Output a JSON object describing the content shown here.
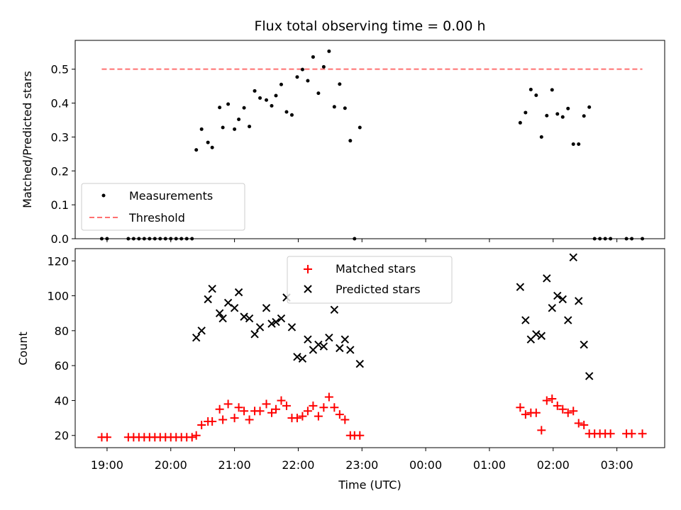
{
  "chart_data": [
    {
      "type": "scatter",
      "title": "Flux total observing time = 0.00 h",
      "xlabel": "",
      "ylabel": "Matched/Predicted stars",
      "ylim": [
        0,
        0.585
      ],
      "yticks": [
        0.0,
        0.1,
        0.2,
        0.3,
        0.4,
        0.5
      ],
      "legend_placement": "lower-left",
      "series": [
        {
          "name": "Measurements",
          "marker": "dot",
          "color": "#000000",
          "points": [
            [
              "18:55",
              0
            ],
            [
              "19:00",
              0
            ],
            [
              "19:20",
              0
            ],
            [
              "19:25",
              0
            ],
            [
              "19:30",
              0
            ],
            [
              "19:35",
              0
            ],
            [
              "19:40",
              0
            ],
            [
              "19:45",
              0
            ],
            [
              "19:50",
              0
            ],
            [
              "19:55",
              0
            ],
            [
              "20:00",
              0
            ],
            [
              "20:05",
              0
            ],
            [
              "20:10",
              0
            ],
            [
              "20:15",
              0
            ],
            [
              "20:20",
              0
            ],
            [
              "20:24",
              0.262
            ],
            [
              "20:29",
              0.323
            ],
            [
              "20:35",
              0.284
            ],
            [
              "20:39",
              0.269
            ],
            [
              "20:46",
              0.387
            ],
            [
              "20:49",
              0.328
            ],
            [
              "20:54",
              0.397
            ],
            [
              "21:00",
              0.323
            ],
            [
              "21:04",
              0.352
            ],
            [
              "21:09",
              0.386
            ],
            [
              "21:14",
              0.331
            ],
            [
              "21:19",
              0.436
            ],
            [
              "21:24",
              0.415
            ],
            [
              "21:30",
              0.409
            ],
            [
              "21:35",
              0.392
            ],
            [
              "21:39",
              0.422
            ],
            [
              "21:44",
              0.455
            ],
            [
              "21:49",
              0.374
            ],
            [
              "21:54",
              0.365
            ],
            [
              "21:59",
              0.477
            ],
            [
              "22:04",
              0.499
            ],
            [
              "22:09",
              0.466
            ],
            [
              "22:14",
              0.536
            ],
            [
              "22:19",
              0.429
            ],
            [
              "22:24",
              0.507
            ],
            [
              "22:29",
              0.553
            ],
            [
              "22:34",
              0.389
            ],
            [
              "22:39",
              0.456
            ],
            [
              "22:44",
              0.385
            ],
            [
              "22:49",
              0.289
            ],
            [
              "22:53",
              0
            ],
            [
              "22:58",
              0.328
            ],
            [
              "01:29",
              0.342
            ],
            [
              "01:34",
              0.372
            ],
            [
              "01:39",
              0.44
            ],
            [
              "01:44",
              0.423
            ],
            [
              "01:49",
              0.3
            ],
            [
              "01:54",
              0.363
            ],
            [
              "01:59",
              0.439
            ],
            [
              "02:04",
              0.368
            ],
            [
              "02:09",
              0.359
            ],
            [
              "02:14",
              0.384
            ],
            [
              "02:19",
              0.279
            ],
            [
              "02:24",
              0.279
            ],
            [
              "02:29",
              0.362
            ],
            [
              "02:34",
              0.388
            ],
            [
              "02:39",
              0
            ],
            [
              "02:44",
              0
            ],
            [
              "02:49",
              0
            ],
            [
              "02:54",
              0
            ],
            [
              "03:09",
              0
            ],
            [
              "03:14",
              0
            ],
            [
              "03:24",
              0
            ]
          ]
        },
        {
          "name": "Threshold",
          "type": "line",
          "style": "dashed",
          "color": "#ff7070",
          "x": [
            "18:55",
            "03:24"
          ],
          "y": [
            0.5,
            0.5
          ]
        }
      ]
    },
    {
      "type": "scatter",
      "xlabel": "Time (UTC)",
      "ylabel": "Count",
      "ylim": [
        13,
        127
      ],
      "yticks": [
        20,
        40,
        60,
        80,
        100,
        120
      ],
      "xlim": [
        "18:30",
        "03:45"
      ],
      "xticks": [
        "19:00",
        "20:00",
        "21:00",
        "22:00",
        "23:00",
        "00:00",
        "01:00",
        "02:00",
        "03:00"
      ],
      "legend_placement": "top-center",
      "series": [
        {
          "name": "Matched stars",
          "marker": "plus",
          "color": "#ff0000",
          "points": [
            [
              "18:55",
              19
            ],
            [
              "19:00",
              19
            ],
            [
              "19:20",
              19
            ],
            [
              "19:25",
              19
            ],
            [
              "19:30",
              19
            ],
            [
              "19:35",
              19
            ],
            [
              "19:40",
              19
            ],
            [
              "19:45",
              19
            ],
            [
              "19:50",
              19
            ],
            [
              "19:55",
              19
            ],
            [
              "20:00",
              19
            ],
            [
              "20:05",
              19
            ],
            [
              "20:10",
              19
            ],
            [
              "20:15",
              19
            ],
            [
              "20:20",
              19
            ],
            [
              "20:24",
              20
            ],
            [
              "20:29",
              26
            ],
            [
              "20:35",
              28
            ],
            [
              "20:39",
              28
            ],
            [
              "20:46",
              35
            ],
            [
              "20:49",
              29
            ],
            [
              "20:54",
              38
            ],
            [
              "21:00",
              30
            ],
            [
              "21:04",
              36
            ],
            [
              "21:09",
              34
            ],
            [
              "21:14",
              29
            ],
            [
              "21:19",
              34
            ],
            [
              "21:24",
              34
            ],
            [
              "21:30",
              38
            ],
            [
              "21:35",
              33
            ],
            [
              "21:39",
              35
            ],
            [
              "21:44",
              40
            ],
            [
              "21:49",
              37
            ],
            [
              "21:54",
              30
            ],
            [
              "21:59",
              30
            ],
            [
              "22:04",
              31
            ],
            [
              "22:09",
              34
            ],
            [
              "22:14",
              37
            ],
            [
              "22:19",
              31
            ],
            [
              "22:24",
              36
            ],
            [
              "22:29",
              42
            ],
            [
              "22:34",
              36
            ],
            [
              "22:39",
              32
            ],
            [
              "22:44",
              29
            ],
            [
              "22:49",
              20
            ],
            [
              "22:53",
              20
            ],
            [
              "22:58",
              20
            ],
            [
              "01:29",
              36
            ],
            [
              "01:34",
              32
            ],
            [
              "01:39",
              33
            ],
            [
              "01:44",
              33
            ],
            [
              "01:49",
              23
            ],
            [
              "01:54",
              40
            ],
            [
              "01:59",
              41
            ],
            [
              "02:04",
              37
            ],
            [
              "02:09",
              35
            ],
            [
              "02:14",
              33
            ],
            [
              "02:19",
              34
            ],
            [
              "02:24",
              27
            ],
            [
              "02:29",
              26
            ],
            [
              "02:34",
              21
            ],
            [
              "02:39",
              21
            ],
            [
              "02:44",
              21
            ],
            [
              "02:49",
              21
            ],
            [
              "02:54",
              21
            ],
            [
              "03:09",
              21
            ],
            [
              "03:14",
              21
            ],
            [
              "03:24",
              21
            ]
          ]
        },
        {
          "name": "Predicted stars",
          "marker": "x",
          "color": "#000000",
          "points": [
            [
              "20:24",
              76
            ],
            [
              "20:29",
              80
            ],
            [
              "20:35",
              98
            ],
            [
              "20:39",
              104
            ],
            [
              "20:46",
              90
            ],
            [
              "20:49",
              87
            ],
            [
              "20:54",
              96
            ],
            [
              "21:00",
              93
            ],
            [
              "21:04",
              102
            ],
            [
              "21:09",
              88
            ],
            [
              "21:14",
              87
            ],
            [
              "21:19",
              78
            ],
            [
              "21:24",
              82
            ],
            [
              "21:30",
              93
            ],
            [
              "21:35",
              84
            ],
            [
              "21:39",
              85
            ],
            [
              "21:44",
              87
            ],
            [
              "21:49",
              99
            ],
            [
              "21:54",
              82
            ],
            [
              "21:59",
              65
            ],
            [
              "22:04",
              64
            ],
            [
              "22:09",
              75
            ],
            [
              "22:14",
              69
            ],
            [
              "22:19",
              72
            ],
            [
              "22:24",
              71
            ],
            [
              "22:29",
              76
            ],
            [
              "22:34",
              92
            ],
            [
              "22:39",
              70
            ],
            [
              "22:44",
              75
            ],
            [
              "22:49",
              69
            ],
            [
              "22:58",
              61
            ],
            [
              "01:29",
              105
            ],
            [
              "01:34",
              86
            ],
            [
              "01:39",
              75
            ],
            [
              "01:44",
              78
            ],
            [
              "01:49",
              77
            ],
            [
              "01:54",
              110
            ],
            [
              "01:59",
              93
            ],
            [
              "02:04",
              100
            ],
            [
              "02:09",
              98
            ],
            [
              "02:14",
              86
            ],
            [
              "02:19",
              122
            ],
            [
              "02:24",
              97
            ],
            [
              "02:29",
              72
            ],
            [
              "02:34",
              54
            ]
          ]
        }
      ]
    }
  ]
}
